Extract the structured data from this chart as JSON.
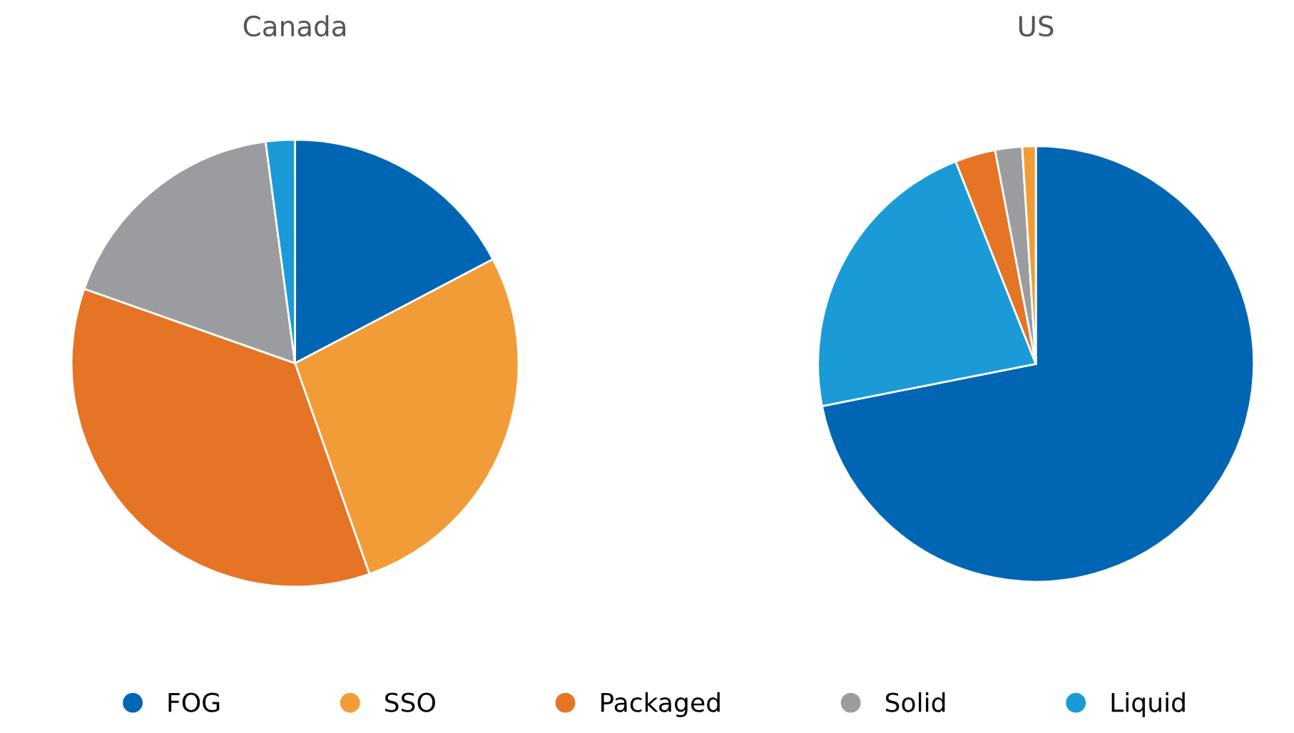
{
  "chart_data": [
    {
      "type": "pie",
      "title": "Canada",
      "categories": [
        "FOG",
        "SSO",
        "Packaged",
        "Solid",
        "Liquid"
      ],
      "values": [
        17.3,
        27.3,
        35.8,
        17.5,
        2.1
      ],
      "colors": [
        "#0066b3",
        "#f29c38",
        "#e57425",
        "#9b9c9f",
        "#1a9bd7"
      ],
      "legend": "bottom"
    },
    {
      "type": "pie",
      "title": "US",
      "categories": [
        null,
        null,
        null,
        null,
        null
      ],
      "values": [
        71.9,
        22.1,
        3.0,
        2.0,
        1.0
      ],
      "colors": [
        "#0066b3",
        "#1a9bd7",
        "#e57425",
        "#9b9c9f",
        "#f29c38"
      ]
    }
  ]
}
